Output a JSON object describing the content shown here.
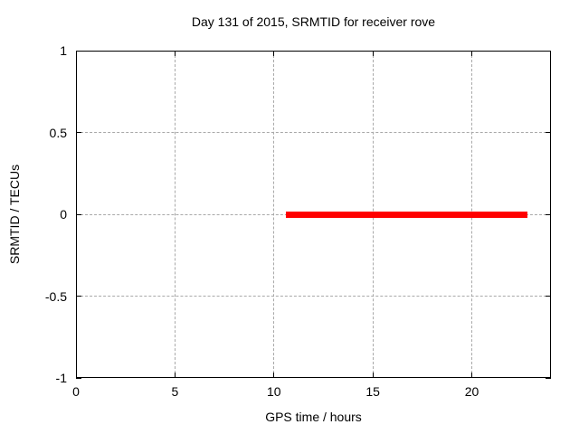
{
  "page": {
    "background": "#ffffff"
  },
  "chart_data": {
    "type": "line",
    "title": "Day 131 of 2015, SRMTID for receiver rove",
    "xlabel": "GPS time / hours",
    "ylabel": "SRMTID / TECUs",
    "xlim": [
      0,
      24
    ],
    "ylim": [
      -1,
      1
    ],
    "grid": true,
    "legend": "none",
    "xticks": [
      {
        "value": 0,
        "label": "0"
      },
      {
        "value": 5,
        "label": "5"
      },
      {
        "value": 10,
        "label": "10"
      },
      {
        "value": 15,
        "label": "15"
      },
      {
        "value": 20,
        "label": "20"
      }
    ],
    "yticks": [
      {
        "value": -1,
        "label": "-1"
      },
      {
        "value": -0.5,
        "label": "-0.5"
      },
      {
        "value": 0,
        "label": "0"
      },
      {
        "value": 0.5,
        "label": "0.5"
      },
      {
        "value": 1,
        "label": "1"
      }
    ],
    "colors": {
      "axis": "#000000",
      "grid": "#a9a9a9",
      "text": "#000000",
      "series": "#ff0000"
    },
    "series": [
      {
        "name": "SRMTID",
        "color": "#ff0000",
        "linewidth": 7,
        "points": [
          [
            10.6,
            0
          ],
          [
            22.8,
            0
          ]
        ]
      }
    ]
  }
}
